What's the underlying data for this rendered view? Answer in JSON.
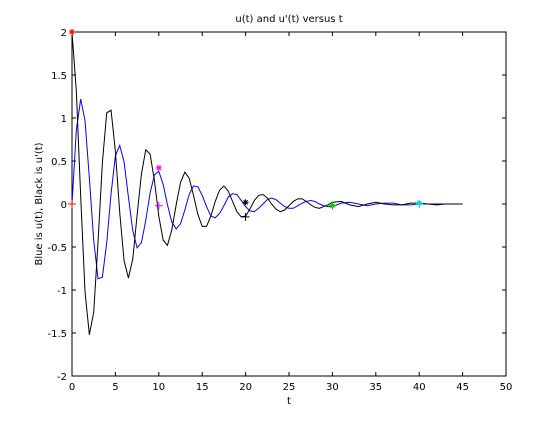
{
  "chart_data": {
    "type": "line",
    "title": "u(t) and u'(t) versus t",
    "x_label": "t",
    "y_label": "Blue is u(t), Black is u'(t)",
    "x": [
      0,
      0.5,
      1,
      1.5,
      2,
      2.5,
      3,
      3.5,
      4,
      4.5,
      5,
      5.5,
      6,
      6.5,
      7,
      7.5,
      8,
      8.5,
      9,
      9.5,
      10,
      10.5,
      11,
      11.5,
      12,
      12.5,
      13,
      13.5,
      14,
      14.5,
      15,
      15.5,
      16,
      16.5,
      17,
      17.5,
      18,
      18.5,
      19,
      19.5,
      20,
      20.5,
      21,
      21.5,
      22,
      22.5,
      23,
      23.5,
      24,
      24.5,
      25,
      25.5,
      26,
      26.5,
      27,
      27.5,
      28,
      28.5,
      29,
      29.5,
      30,
      31,
      32,
      33,
      34,
      35,
      36,
      37,
      38,
      39,
      40,
      41,
      42,
      43,
      44,
      45
    ],
    "series": [
      {
        "name": "u(t)",
        "color": "#0000ff",
        "values": [
          0,
          0.86,
          1.22,
          0.97,
          0.3,
          -0.42,
          -0.87,
          -0.85,
          -0.45,
          0.12,
          0.56,
          0.68,
          0.49,
          0.08,
          -0.31,
          -0.51,
          -0.45,
          -0.19,
          0.13,
          0.34,
          0.38,
          0.23,
          -0.01,
          -0.21,
          -0.29,
          -0.23,
          -0.07,
          0.11,
          0.21,
          0.2,
          0.1,
          -0.03,
          -0.14,
          -0.16,
          -0.11,
          -0.02,
          0.08,
          0.12,
          0.11,
          0.04,
          -0.03,
          -0.08,
          -0.09,
          -0.05,
          0,
          0.05,
          0.07,
          0.05,
          0.01,
          -0.03,
          -0.05,
          -0.05,
          -0.02,
          0.01,
          0.03,
          0.04,
          0.03,
          0,
          -0.02,
          -0.03,
          -0.03,
          0.01,
          0.02,
          0,
          -0.02,
          0,
          0.01,
          0.01,
          -0.01,
          -0.01,
          0,
          0,
          0,
          0,
          0,
          0
        ]
      },
      {
        "name": "u'(t)",
        "color": "#000000",
        "values": [
          2,
          1.31,
          0.09,
          -1.02,
          -1.52,
          -1.26,
          -0.44,
          0.48,
          1.06,
          1.09,
          0.61,
          -0.1,
          -0.66,
          -0.86,
          -0.64,
          -0.13,
          0.35,
          0.63,
          0.58,
          0.27,
          -0.14,
          -0.42,
          -0.48,
          -0.3,
          -0.01,
          0.25,
          0.37,
          0.3,
          0.1,
          -0.12,
          -0.26,
          -0.26,
          -0.14,
          0.03,
          0.16,
          0.21,
          0.15,
          0.03,
          -0.09,
          -0.15,
          -0.14,
          -0.06,
          0.04,
          0.1,
          0.11,
          0.07,
          0,
          -0.06,
          -0.09,
          -0.07,
          -0.02,
          0.03,
          0.06,
          0.06,
          0.03,
          -0.01,
          -0.04,
          -0.05,
          -0.03,
          -0.01,
          0.02,
          0.03,
          -0.01,
          -0.03,
          0,
          0.02,
          0,
          -0.01,
          -0.01,
          0.01,
          0.01,
          0,
          -0.01,
          0,
          0,
          0
        ]
      }
    ],
    "markers": {
      "x": [
        0,
        10,
        20,
        30,
        40
      ],
      "star": [
        2,
        0.42,
        0.02,
        -0.02,
        0.01
      ],
      "plus": [
        0,
        -0.02,
        -0.15,
        -0.02,
        0
      ],
      "colors": [
        "#ff0000",
        "#ff00ff",
        "#000000",
        "#00cc00",
        "#00ccff"
      ]
    },
    "xlim": [
      0,
      50
    ],
    "ylim": [
      -2,
      2
    ],
    "xticks": [
      0,
      5,
      10,
      15,
      20,
      25,
      30,
      35,
      40,
      45,
      50
    ],
    "yticks": [
      -2,
      -1.5,
      -1,
      -0.5,
      0,
      0.5,
      1,
      1.5,
      2
    ],
    "grid": false
  }
}
